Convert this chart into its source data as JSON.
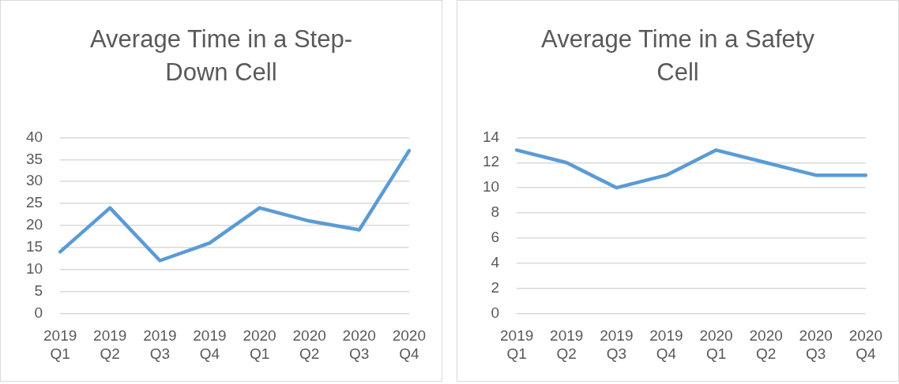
{
  "chart_data": [
    {
      "type": "line",
      "title": "Average Time in a Step-Down Cell",
      "categories": [
        "2019 Q1",
        "2019 Q2",
        "2019 Q3",
        "2019 Q4",
        "2020 Q1",
        "2020 Q2",
        "2020 Q3",
        "2020 Q4"
      ],
      "series": [
        {
          "color": "#5b9bd5",
          "values": [
            14,
            24,
            12,
            16,
            24,
            21,
            19,
            37
          ]
        }
      ],
      "ylim": [
        0,
        40
      ],
      "yticks": [
        0,
        5,
        10,
        15,
        20,
        25,
        30,
        35,
        40
      ],
      "grid": "y",
      "legend": false,
      "marker": "none",
      "line_style": "solid"
    },
    {
      "type": "line",
      "title": "Average Time in a Safety Cell",
      "categories": [
        "2019 Q1",
        "2019 Q2",
        "2019 Q3",
        "2019 Q4",
        "2020 Q1",
        "2020 Q2",
        "2020 Q3",
        "2020 Q4"
      ],
      "series": [
        {
          "color": "#5b9bd5",
          "values": [
            13,
            12,
            10,
            11,
            13,
            12,
            11,
            11
          ]
        }
      ],
      "ylim": [
        0,
        14
      ],
      "yticks": [
        0,
        2,
        4,
        6,
        8,
        10,
        12,
        14
      ],
      "grid": "y",
      "legend": false,
      "marker": "none",
      "line_style": "solid"
    }
  ]
}
